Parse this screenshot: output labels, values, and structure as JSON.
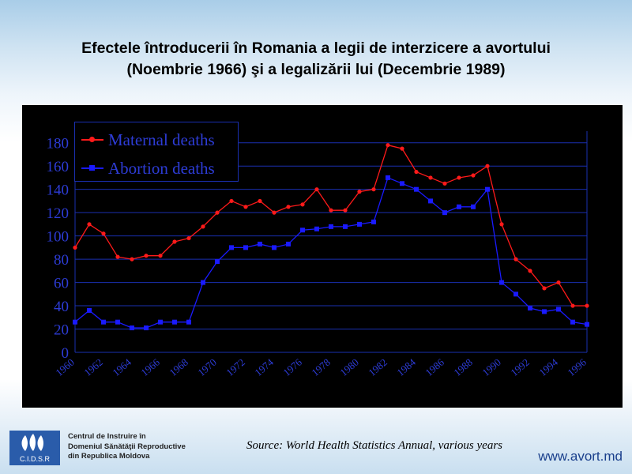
{
  "slide": {
    "title_line1": "Efectele întroducerii în Romania a legii de interzicere a avortului",
    "title_line2": "(Noembrie 1966) şi a legalizării lui (Decembrie 1989)",
    "source": "Source: World Health Statistics Annual, various years",
    "footer": {
      "org_logo_text": "C.I.D.S.R",
      "org_name_line1": "Centrul de Instruire în",
      "org_name_line2": "Domeniul Sănătăţii Reproductive",
      "org_name_line3": "din Republica Moldova",
      "website": "www.avort.md"
    }
  },
  "colors": {
    "maternal": "#ff1a1a",
    "abortion": "#1a1aff",
    "grid": "#1a2fb0",
    "tick_text": "#2d3cd6",
    "chart_bg": "#000000"
  },
  "chart_data": {
    "type": "line",
    "x": [
      1960,
      1961,
      1962,
      1963,
      1964,
      1965,
      1966,
      1967,
      1968,
      1969,
      1970,
      1971,
      1972,
      1973,
      1974,
      1975,
      1976,
      1977,
      1978,
      1979,
      1980,
      1981,
      1982,
      1983,
      1984,
      1985,
      1986,
      1987,
      1988,
      1989,
      1990,
      1991,
      1992,
      1993,
      1994,
      1995,
      1996
    ],
    "x_tick_labels": [
      "1960",
      "1962",
      "1964",
      "1966",
      "1968",
      "1970",
      "1972",
      "1974",
      "1976",
      "1978",
      "1980",
      "1982",
      "1984",
      "1986",
      "1988",
      "1990",
      "1992",
      "1994",
      "1996"
    ],
    "y_ticks": [
      0,
      20,
      40,
      60,
      80,
      100,
      120,
      140,
      160,
      180
    ],
    "ylim": [
      0,
      190
    ],
    "grid": true,
    "legend_position": "top-left",
    "series": [
      {
        "name": "Maternal deaths",
        "values": [
          90,
          110,
          102,
          82,
          80,
          83,
          83,
          95,
          98,
          108,
          120,
          130,
          125,
          130,
          120,
          125,
          127,
          140,
          122,
          122,
          138,
          140,
          178,
          175,
          155,
          150,
          145,
          150,
          152,
          160,
          110,
          80,
          70,
          55,
          60,
          40,
          40
        ]
      },
      {
        "name": "Abortion deaths",
        "values": [
          26,
          36,
          26,
          26,
          21,
          21,
          26,
          26,
          26,
          60,
          78,
          90,
          90,
          93,
          90,
          93,
          105,
          106,
          108,
          108,
          110,
          112,
          150,
          145,
          140,
          130,
          120,
          125,
          125,
          140,
          60,
          50,
          38,
          35,
          37,
          26,
          24
        ]
      }
    ]
  }
}
